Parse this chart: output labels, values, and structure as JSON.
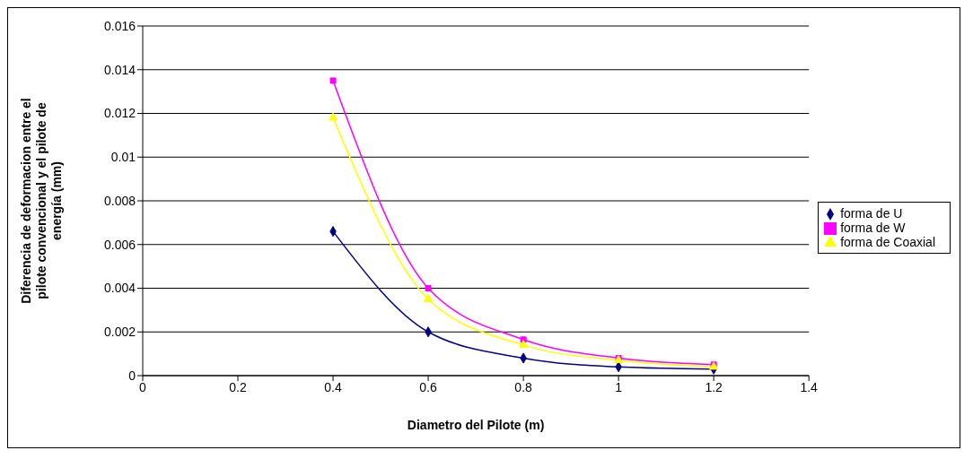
{
  "chart_data": {
    "type": "line",
    "xlabel": "Diametro del Pilote (m)",
    "ylabel": "Diferencia de deformacion entre el pilote convencional y el pilote de energía (mm)",
    "x": [
      0.4,
      0.6,
      0.8,
      1.0,
      1.2
    ],
    "series": [
      {
        "name": "forma de U",
        "color": "#000080",
        "marker": "diamond",
        "values": [
          0.0066,
          0.002,
          0.0008,
          0.0004,
          0.0003
        ]
      },
      {
        "name": "forma de W",
        "color": "#ff00ff",
        "marker": "square",
        "values": [
          0.0135,
          0.004,
          0.00165,
          0.0008,
          0.0005
        ]
      },
      {
        "name": "forma de Coaxial",
        "color": "#ffff00",
        "marker": "triangle",
        "values": [
          0.0118,
          0.0035,
          0.0014,
          0.0007,
          0.0004
        ]
      }
    ],
    "xlim": [
      0,
      1.4
    ],
    "xticks": [
      0,
      0.2,
      0.4,
      0.6,
      0.8,
      1,
      1.2,
      1.4
    ],
    "ylim": [
      0,
      0.016
    ],
    "yticks": [
      0,
      0.002,
      0.004,
      0.006,
      0.008,
      0.01,
      0.012,
      0.014,
      0.016
    ],
    "grid": "y",
    "legend": "right"
  }
}
